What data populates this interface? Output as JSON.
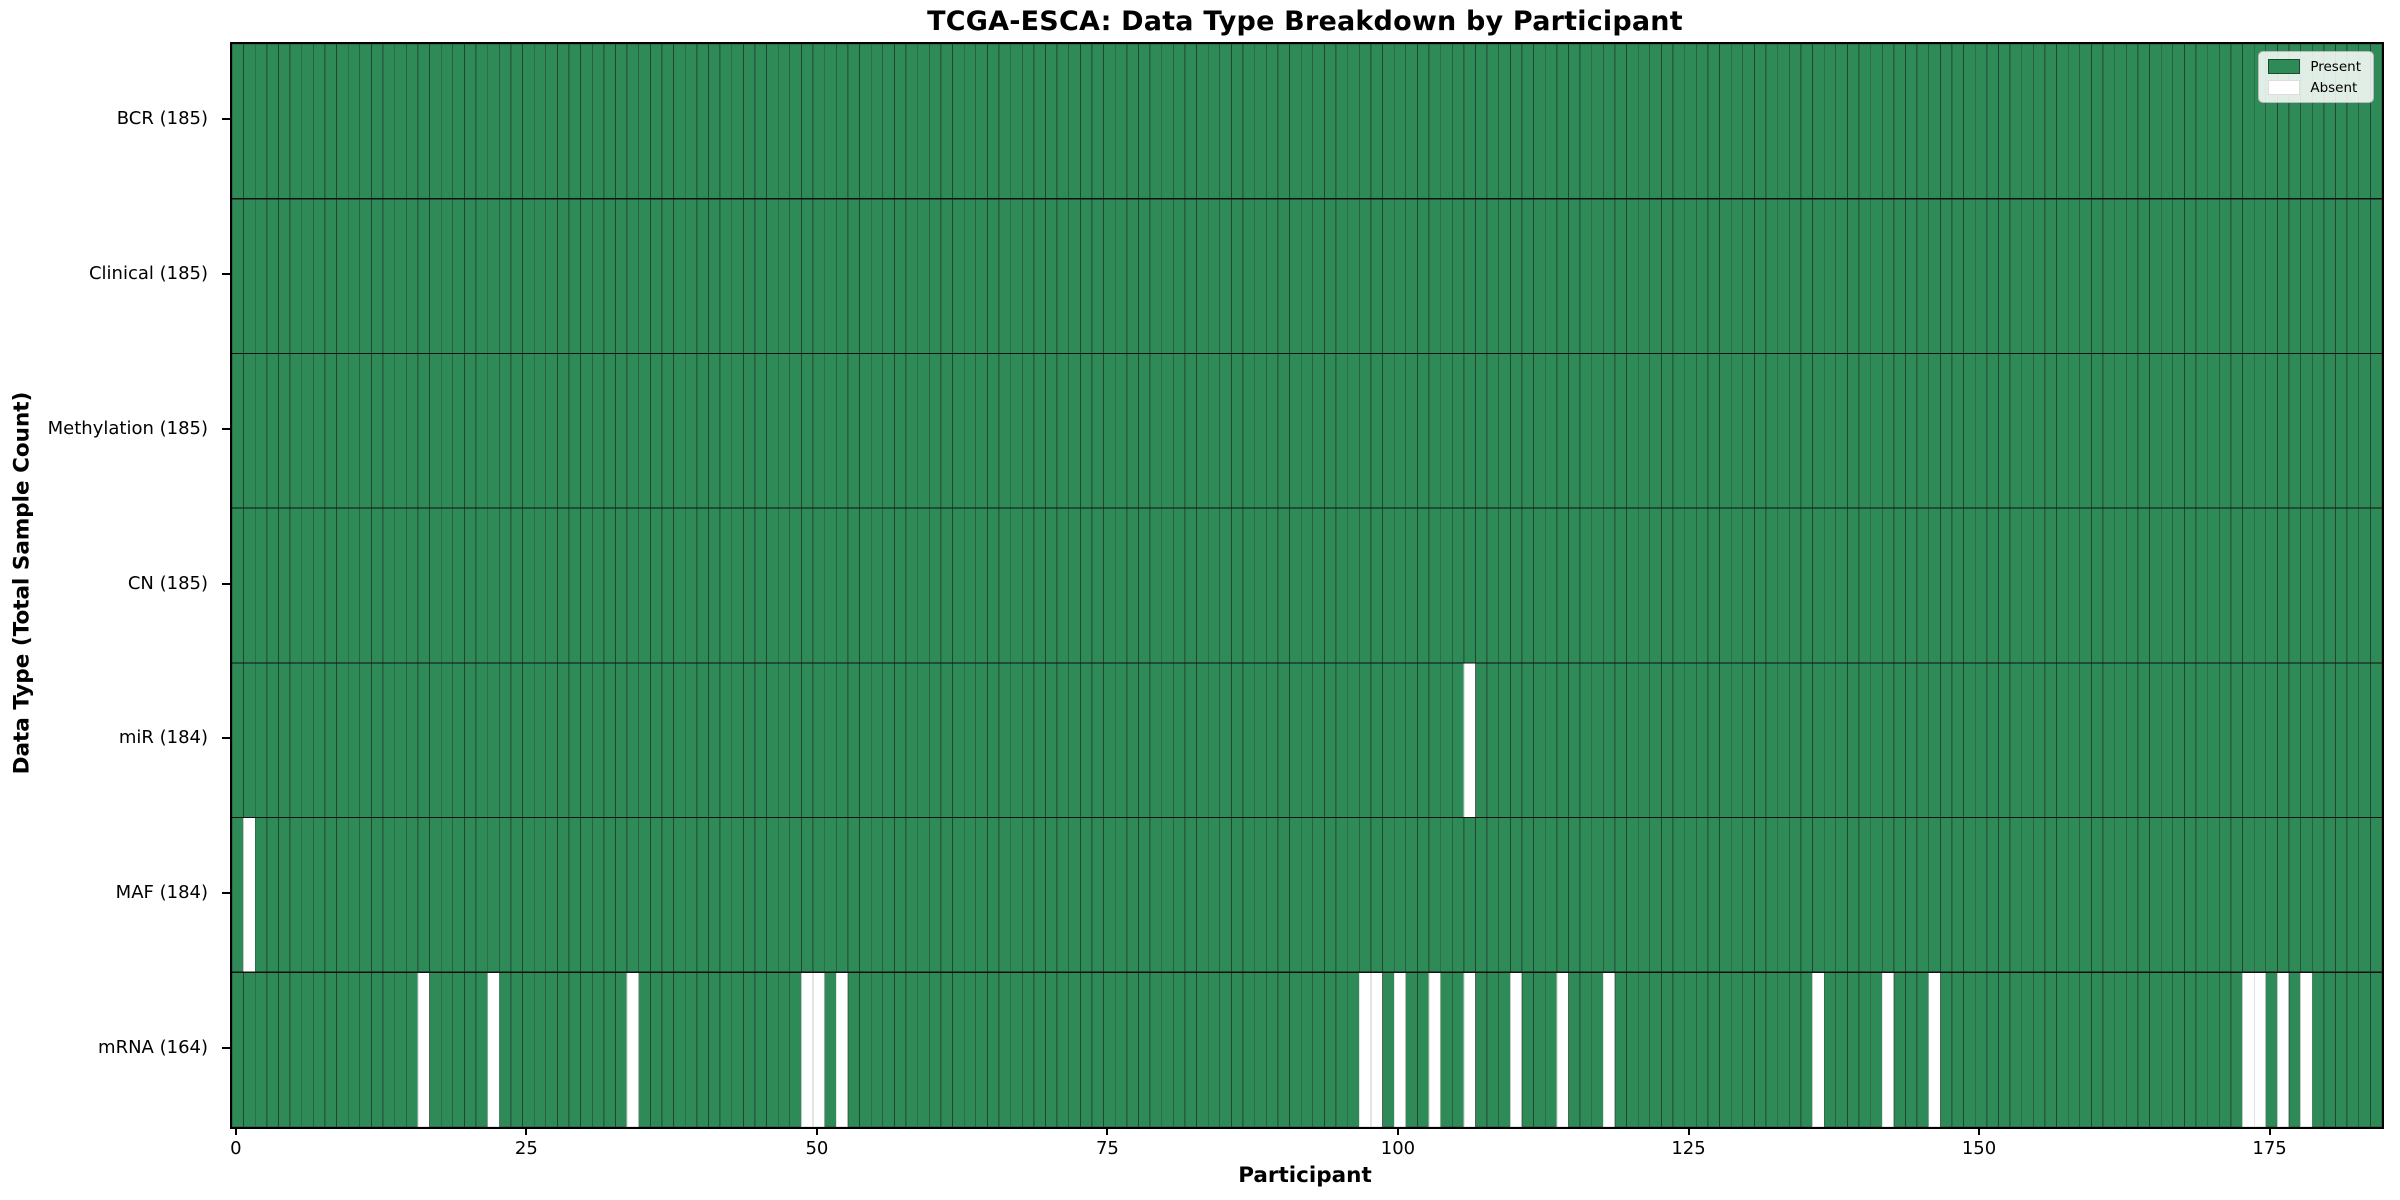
{
  "title": "TCGA-ESCA: Data Type Breakdown by Participant",
  "legend": {
    "present_label": "Present",
    "absent_label": "Absent"
  },
  "chart_data": {
    "type": "heatmap",
    "title": "TCGA-ESCA: Data Type Breakdown by Participant",
    "xlabel": "Participant",
    "ylabel": "Data Type (Total Sample Count)",
    "n_participants": 185,
    "x_ticks": [
      0,
      25,
      50,
      75,
      100,
      125,
      150,
      175
    ],
    "x_range": [
      0,
      185
    ],
    "grid": "off",
    "legend": [
      "Present",
      "Absent"
    ],
    "legend_position": "upper right",
    "colors": {
      "present": "#2E8B57",
      "absent": "#FFFFFF",
      "cell_edge": "#1c1c1c",
      "absent_edge": "#c8c8c8",
      "row_separator": "#111111"
    },
    "rows": [
      {
        "label": "BCR (185)",
        "data_type": "BCR",
        "total_samples": 185,
        "absent_participants": []
      },
      {
        "label": "Clinical (185)",
        "data_type": "Clinical",
        "total_samples": 185,
        "absent_participants": []
      },
      {
        "label": "Methylation (185)",
        "data_type": "Methylation",
        "total_samples": 185,
        "absent_participants": []
      },
      {
        "label": "CN (185)",
        "data_type": "CN",
        "total_samples": 185,
        "absent_participants": []
      },
      {
        "label": "miR (184)",
        "data_type": "miR",
        "total_samples": 184,
        "absent_participants": [
          106
        ]
      },
      {
        "label": "MAF (184)",
        "data_type": "MAF",
        "total_samples": 184,
        "absent_participants": [
          1
        ]
      },
      {
        "label": "mRNA (164)",
        "data_type": "mRNA",
        "total_samples": 164,
        "absent_participants": [
          16,
          22,
          34,
          49,
          50,
          52,
          97,
          98,
          100,
          103,
          106,
          110,
          114,
          118,
          136,
          142,
          146,
          173,
          174,
          176,
          178
        ]
      }
    ]
  }
}
